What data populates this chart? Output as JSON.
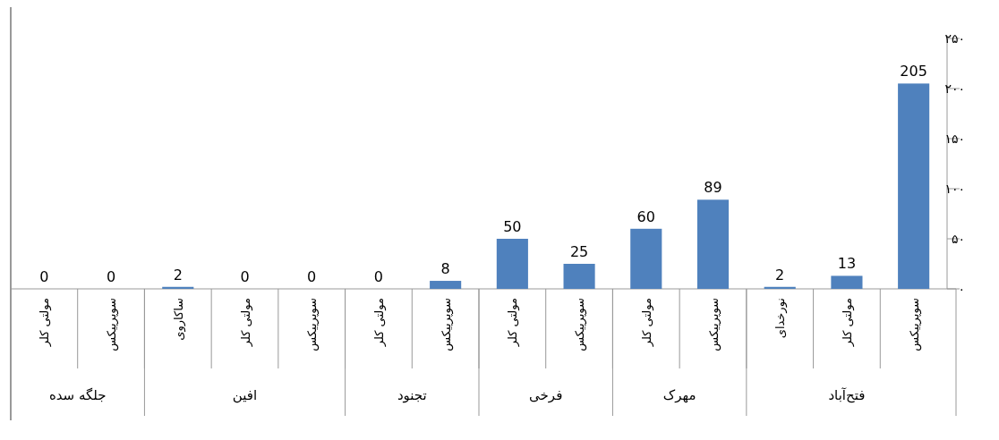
{
  "chart_data": {
    "type": "bar",
    "categories": [
      "مولتی کلر",
      "سوپرپیکس",
      "ساکاروی",
      "مولتی کلر",
      "سوپرپیکس",
      "مولتی کلر",
      "سوپرپیکس",
      "مولتی کلر",
      "سوپرپیکس",
      "مولتی کلر",
      "سوپرپیکس",
      "نورخدای",
      "مولتی کلر",
      "سوپرپیکس"
    ],
    "values": [
      0,
      0,
      2,
      0,
      0,
      0,
      8,
      50,
      25,
      60,
      89,
      2,
      13,
      205
    ],
    "color": "#4f81bd",
    "ylim": [
      0,
      250
    ],
    "yticks": [
      {
        "value": 0,
        "label": "۰"
      },
      {
        "value": 50,
        "label": "۵۰"
      },
      {
        "value": 100,
        "label": "۱۰۰"
      },
      {
        "value": 150,
        "label": "۱۵۰"
      },
      {
        "value": 200,
        "label": "۲۰۰"
      },
      {
        "value": 250,
        "label": "۲۵۰"
      }
    ],
    "data_labels": true,
    "annotations": [
      "جلگه سده",
      "افین",
      "تجنود",
      "فرخی",
      "مهرک",
      "فتح‌آباد"
    ]
  }
}
